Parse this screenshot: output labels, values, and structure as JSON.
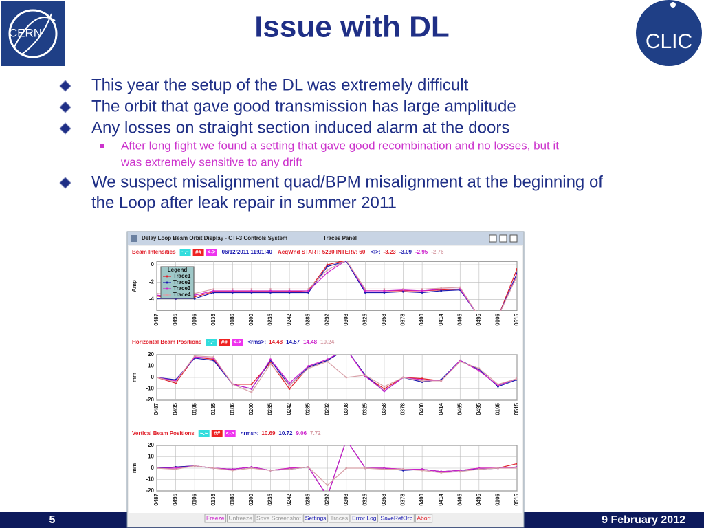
{
  "header": {
    "title": "Issue with DL",
    "left_logo": "CERN",
    "right_logo": "CLIC"
  },
  "bullets": [
    {
      "lines": [
        "This year the setup of the DL was extremely difficult"
      ]
    },
    {
      "lines": [
        "The orbit that gave good transmission has large amplitude"
      ]
    },
    {
      "lines": [
        "Any losses on straight section induced alarm at the doors"
      ]
    },
    {
      "lines": [
        "After long fight we found a setting that gave good recombination and no losses, but it",
        "was extremely sensitive to any drift"
      ],
      "sub": true
    },
    {
      "lines": [
        "We suspect misalignment quad/BPM misalignment at the beginning of",
        "the Loop after leak repair in summer 2011"
      ]
    }
  ],
  "screenshot": {
    "window_title": "Delay Loop Beam Orbit Display - CTF3 Controls System",
    "panel_title": "Traces Panel",
    "panels": [
      {
        "type": "line",
        "title": "Beam Intensities",
        "controls": [
          "~.~",
          "##",
          "<->"
        ],
        "info": [
          "06/12/2011 11:01:40",
          "AcqWnd START: 5230 INTERV: 60"
        ],
        "stat_label": "<I>:",
        "stats": [
          -3.23,
          -3.09,
          -2.95,
          -2.76
        ],
        "ylabel": "Amp",
        "categories": [
          "0487",
          "0495",
          "0105",
          "0135",
          "0186",
          "0200",
          "0235",
          "0242",
          "0285",
          "0292",
          "0308",
          "0325",
          "0358",
          "0378",
          "0400",
          "0414",
          "0465",
          "0495",
          "0105",
          "0515"
        ],
        "ylim": [
          -5.3,
          0.4
        ],
        "yticks": [
          0,
          -2,
          -4
        ],
        "legend": {
          "title": "Legend"
        },
        "series": [
          {
            "name": "Trace1",
            "color": "#e0202a",
            "values": [
              -3.6,
              -3.9,
              -3.7,
              -3.1,
              -3.1,
              -3.1,
              -3.1,
              -3.1,
              -3.0,
              0,
              0.5,
              -3.0,
              -3.0,
              -3.0,
              -3.0,
              -2.9,
              -2.8,
              -6,
              -6,
              -0.5
            ]
          },
          {
            "name": "Trace2",
            "color": "#1a1ab0",
            "values": [
              -3.9,
              -3.9,
              -3.9,
              -3.2,
              -3.2,
              -3.2,
              -3.2,
              -3.2,
              -3.2,
              -0.2,
              0.4,
              -3.2,
              -3.2,
              -3.1,
              -3.2,
              -3.0,
              -2.9,
              -6,
              -6,
              -1
            ]
          },
          {
            "name": "Trace3",
            "color": "#cc22cc",
            "values": [
              -3.5,
              -3.7,
              -3.5,
              -3.0,
              -3.0,
              -3.0,
              -3.0,
              -3.0,
              -3.0,
              -0.9,
              0.5,
              -3.0,
              -3.0,
              -2.9,
              -3.0,
              -2.8,
              -2.8,
              -6,
              -6,
              -1.2
            ]
          },
          {
            "name": "Trace4",
            "color": "#d8a0a8",
            "values": [
              -3.3,
              -3.5,
              -3.3,
              -2.8,
              -2.8,
              -2.8,
              -2.8,
              -2.8,
              -2.8,
              -0.6,
              0.5,
              -2.8,
              -2.8,
              -2.8,
              -2.8,
              -2.7,
              -2.6,
              -6,
              -6,
              -1.3
            ]
          }
        ]
      },
      {
        "type": "line",
        "title": "Horizontal Beam Positions",
        "controls": [
          "~.~",
          "##",
          "<->"
        ],
        "stat_label": "<rms>:",
        "stats": [
          14.48,
          14.57,
          14.48,
          10.24
        ],
        "ylabel": "mm",
        "categories": [
          "0487",
          "0495",
          "0105",
          "0135",
          "0186",
          "0200",
          "0235",
          "0242",
          "0285",
          "0292",
          "0308",
          "0325",
          "0358",
          "0378",
          "0400",
          "0414",
          "0465",
          "0495",
          "0105",
          "0515"
        ],
        "ylim": [
          -20,
          20
        ],
        "yticks": [
          20,
          10,
          0,
          -10,
          -20
        ],
        "series": [
          {
            "name": "Trace1",
            "color": "#e0202a",
            "values": [
              0,
              -5,
              18,
              16,
              -6,
              -6,
              13,
              -10,
              9,
              15,
              25,
              1,
              -10,
              0,
              -1,
              -3,
              15,
              6,
              -7,
              -1
            ]
          },
          {
            "name": "Trace2",
            "color": "#1a1ab0",
            "values": [
              0,
              -2,
              17,
              15,
              -6,
              -10,
              15,
              -7,
              9,
              15,
              25,
              2,
              -12,
              0,
              -4,
              -2,
              15,
              7,
              -8,
              -2
            ]
          },
          {
            "name": "Trace3",
            "color": "#cc22cc",
            "values": [
              0,
              -3,
              18,
              17,
              -6,
              -10,
              16,
              -5,
              10,
              16,
              25,
              1,
              -12,
              0,
              -2,
              -3,
              15,
              6,
              -7,
              -1
            ]
          },
          {
            "name": "Trace4",
            "color": "#d8a0a8",
            "values": [
              0,
              -4,
              19,
              18,
              -6,
              -13,
              12,
              -7,
              8,
              14,
              0,
              2,
              -8,
              0,
              -3,
              -3,
              14,
              8,
              -6,
              -1
            ]
          }
        ]
      },
      {
        "type": "line",
        "title": "Vertical Beam Positions",
        "controls": [
          "~.~",
          "##",
          "<->"
        ],
        "stat_label": "<rms>:",
        "stats": [
          10.69,
          10.72,
          9.06,
          7.72
        ],
        "ylabel": "mm",
        "categories": [
          "0487",
          "0495",
          "0105",
          "0135",
          "0186",
          "0200",
          "0235",
          "0242",
          "0285",
          "0292",
          "0308",
          "0325",
          "0358",
          "0378",
          "0400",
          "0414",
          "0465",
          "0495",
          "0105",
          "0515"
        ],
        "ylim": [
          -20,
          20
        ],
        "yticks": [
          20,
          10,
          0,
          -10,
          -20
        ],
        "series": [
          {
            "name": "Trace1",
            "color": "#e0202a",
            "values": [
              0,
              1,
              2,
              0,
              -1,
              1,
              -2,
              0,
              1,
              -25,
              25,
              0,
              0,
              -1,
              -1,
              -3,
              -2,
              0,
              0,
              4
            ]
          },
          {
            "name": "Trace2",
            "color": "#1a1ab0",
            "values": [
              0,
              1,
              2,
              0,
              -1,
              1,
              -2,
              -1,
              1,
              -25,
              25,
              0,
              0,
              -2,
              -1,
              -3,
              -2,
              -1,
              0,
              1
            ]
          },
          {
            "name": "Trace3",
            "color": "#cc22cc",
            "values": [
              0,
              0,
              2,
              0,
              -1,
              1,
              -2,
              0,
              1,
              -25,
              25,
              0,
              0,
              -1,
              -1,
              -3,
              -2,
              0,
              0,
              1
            ]
          },
          {
            "name": "Trace4",
            "color": "#d8a0a8",
            "values": [
              0,
              -1,
              2,
              0,
              -2,
              0,
              -2,
              -1,
              1,
              -15,
              0,
              0,
              -1,
              -1,
              -2,
              -4,
              -3,
              -1,
              0,
              0
            ]
          }
        ]
      }
    ],
    "buttons": [
      {
        "label": "Freeze",
        "color": "#cc22cc"
      },
      {
        "label": "Unfreeze",
        "color": "#999999"
      },
      {
        "label": "Save Screenshot",
        "color": "#999999"
      },
      {
        "label": "Settings",
        "color": "#1a1ab0"
      },
      {
        "label": "Traces",
        "color": "#999999"
      },
      {
        "label": "Error Log",
        "color": "#1a1ab0"
      },
      {
        "label": "SaveRefOrb",
        "color": "#1a1ab0"
      },
      {
        "label": "Abort",
        "color": "#e0202a"
      }
    ]
  },
  "footer": {
    "page": "5",
    "date": "9 February 2012"
  }
}
